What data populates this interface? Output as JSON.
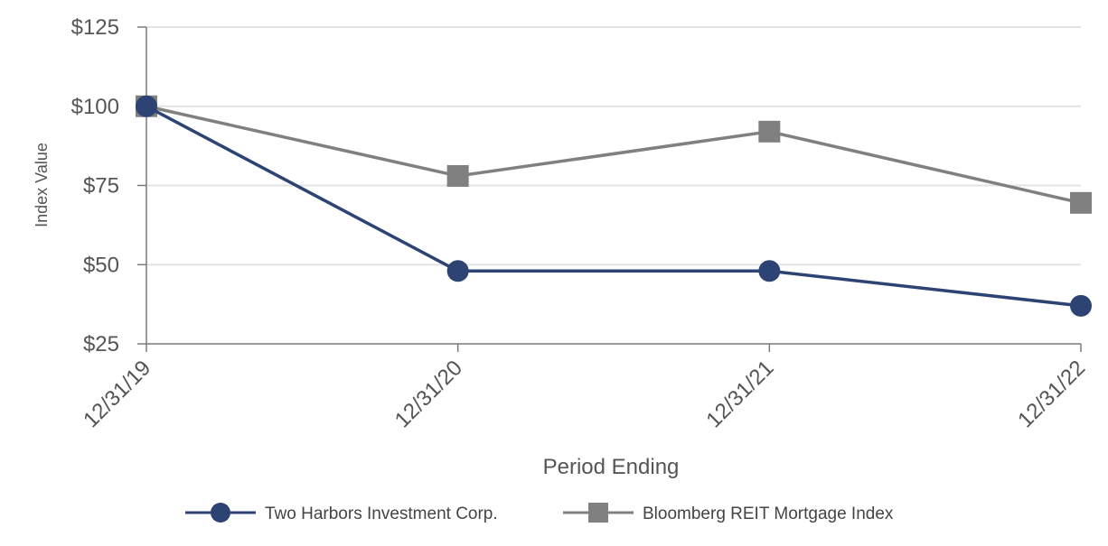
{
  "chart_data": {
    "type": "line",
    "title": "",
    "xlabel": "Period Ending",
    "ylabel": "Index Value",
    "categories": [
      "12/31/19",
      "12/31/20",
      "12/31/21",
      "12/31/22"
    ],
    "ylim": [
      25,
      125
    ],
    "yticks": [
      25,
      50,
      75,
      100,
      125
    ],
    "ytick_labels": [
      "$25",
      "$50",
      "$75",
      "$100",
      "$125"
    ],
    "grid": true,
    "legend_position": "bottom",
    "series": [
      {
        "name": "Two Harbors Investment Corp.",
        "values": [
          100,
          48,
          48,
          37
        ],
        "color": "#2d4373",
        "marker": "circle"
      },
      {
        "name": "Bloomberg REIT Mortgage Index",
        "values": [
          100,
          78,
          92,
          69.5
        ],
        "color": "#808080",
        "marker": "square"
      }
    ]
  }
}
